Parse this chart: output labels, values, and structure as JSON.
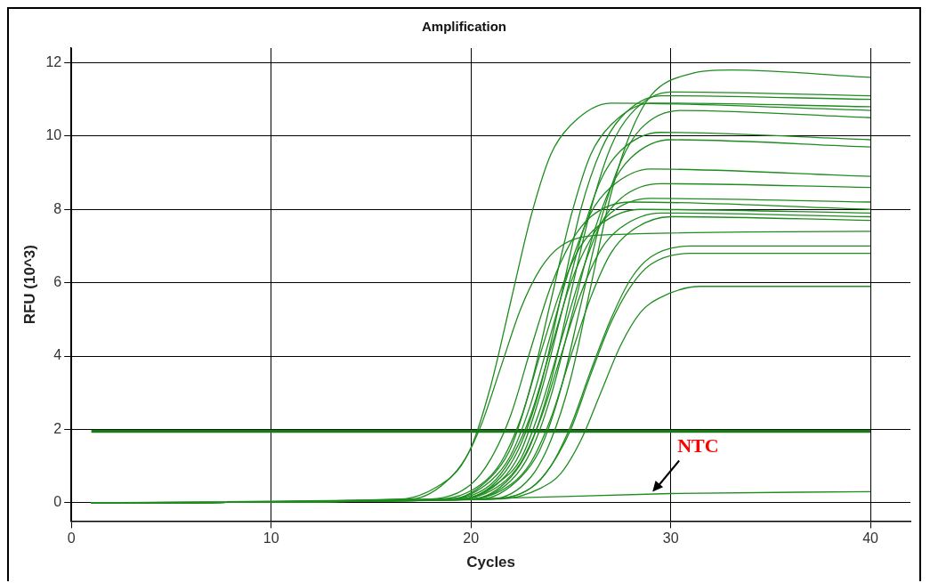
{
  "chart_data": {
    "type": "line",
    "title": "Amplification",
    "xlabel": "Cycles",
    "ylabel": "RFU (10^3)",
    "xlim": [
      0,
      42
    ],
    "ylim": [
      -0.5,
      12.4
    ],
    "xticks": [
      0,
      10,
      20,
      30,
      40
    ],
    "yticks": [
      0,
      2,
      4,
      6,
      8,
      10,
      12
    ],
    "grid": true,
    "legend": false,
    "marker": "none",
    "line_style": "solid",
    "ref_lines": [
      {
        "axis": "y",
        "value": 1.95,
        "color": "#1a7a1a"
      }
    ],
    "annotations": [
      {
        "text": "NTC",
        "x": 29,
        "y": 0.25
      }
    ],
    "series": [
      {
        "color": "#1f8c1f",
        "x": [
          1,
          17,
          19,
          20,
          21,
          22,
          23,
          24,
          25,
          27,
          40
        ],
        "values": [
          0,
          0.1,
          0.7,
          1.5,
          3.2,
          5.5,
          7.8,
          9.5,
          10.3,
          10.9,
          10.7
        ]
      },
      {
        "color": "#1f8c1f",
        "x": [
          1,
          16.5,
          18.5,
          19.5,
          20.5,
          21.5,
          22.5,
          23.5,
          24.5,
          26.5,
          40
        ],
        "values": [
          0,
          0.1,
          0.5,
          1.0,
          2.1,
          3.7,
          5.3,
          6.4,
          7.0,
          7.3,
          7.4
        ]
      },
      {
        "color": "#1f8c1f",
        "x": [
          1,
          21,
          23,
          24,
          25,
          26,
          27,
          28,
          29,
          31,
          33,
          40
        ],
        "values": [
          0,
          0.1,
          0.7,
          1.7,
          3.4,
          5.9,
          8.4,
          10.1,
          11.1,
          11.7,
          11.8,
          11.6
        ]
      },
      {
        "color": "#1f8c1f",
        "x": [
          1,
          20,
          22,
          23,
          24,
          25,
          26,
          27,
          28,
          30,
          40
        ],
        "values": [
          0,
          0.1,
          0.7,
          1.6,
          3.3,
          5.7,
          8.0,
          9.7,
          10.6,
          11.2,
          11.1
        ]
      },
      {
        "color": "#1f8c1f",
        "x": [
          1,
          19.5,
          21.5,
          22.5,
          23.5,
          24.5,
          25.5,
          26.5,
          27.5,
          29.5,
          40
        ],
        "values": [
          0,
          0.1,
          0.7,
          1.6,
          3.2,
          5.6,
          8.0,
          9.6,
          10.5,
          11.1,
          11.0
        ]
      },
      {
        "color": "#1f8c1f",
        "x": [
          1,
          19,
          21,
          22,
          23,
          24,
          25,
          26,
          27,
          29,
          40
        ],
        "values": [
          0,
          0.1,
          0.7,
          1.5,
          3.2,
          5.5,
          7.8,
          9.5,
          10.3,
          10.9,
          10.8
        ]
      },
      {
        "color": "#1f8c1f",
        "x": [
          1,
          20.5,
          22.5,
          23.5,
          24.5,
          25.5,
          26.5,
          27.5,
          28.5,
          30.5,
          40
        ],
        "values": [
          0,
          0.1,
          0.7,
          1.5,
          3.1,
          5.4,
          7.7,
          9.3,
          10.2,
          10.7,
          10.5
        ]
      },
      {
        "color": "#1f8c1f",
        "x": [
          1,
          19.5,
          21.5,
          22.5,
          23.5,
          24.5,
          25.5,
          26.5,
          27.5,
          29.5,
          40
        ],
        "values": [
          0,
          0.1,
          0.6,
          1.4,
          3.0,
          5.1,
          7.2,
          8.8,
          9.6,
          10.1,
          9.9
        ]
      },
      {
        "color": "#1f8c1f",
        "x": [
          1,
          20,
          22,
          23,
          24,
          25,
          26,
          27,
          28,
          30,
          40
        ],
        "values": [
          0,
          0.1,
          0.6,
          1.4,
          2.9,
          5.0,
          7.1,
          8.6,
          9.4,
          9.9,
          9.7
        ]
      },
      {
        "color": "#1f8c1f",
        "x": [
          1,
          19,
          21,
          22,
          23,
          24,
          25,
          26,
          27,
          29,
          40
        ],
        "values": [
          0,
          0.1,
          0.6,
          1.3,
          2.7,
          4.6,
          6.5,
          7.9,
          8.6,
          9.1,
          8.9
        ]
      },
      {
        "color": "#1f8c1f",
        "x": [
          1,
          19.5,
          21.5,
          22.5,
          23.5,
          24.5,
          25.5,
          26.5,
          27.5,
          29.5,
          40
        ],
        "values": [
          0,
          0.1,
          0.6,
          1.2,
          2.6,
          4.4,
          6.2,
          7.6,
          8.3,
          8.7,
          8.6
        ]
      },
      {
        "color": "#1f8c1f",
        "x": [
          1,
          19,
          21,
          22,
          23,
          24,
          25,
          26,
          27,
          29,
          40
        ],
        "values": [
          0,
          0.1,
          0.5,
          1.2,
          2.4,
          4.2,
          6.0,
          7.2,
          7.9,
          8.3,
          8.2
        ]
      },
      {
        "color": "#1f8c1f",
        "x": [
          1,
          18.5,
          20.5,
          21.5,
          22.5,
          23.5,
          24.5,
          25.5,
          26.5,
          28.5,
          40
        ],
        "values": [
          0,
          0.1,
          0.5,
          1.1,
          2.3,
          4.1,
          5.8,
          7.0,
          7.6,
          8.0,
          7.9
        ]
      },
      {
        "color": "#1f8c1f",
        "x": [
          1,
          19.5,
          21.5,
          22.5,
          23.5,
          24.5,
          25.5,
          26.5,
          27.5,
          29.5,
          40
        ],
        "values": [
          0,
          0.1,
          0.5,
          1.1,
          2.3,
          4.0,
          5.7,
          6.9,
          7.5,
          7.9,
          7.8
        ]
      },
      {
        "color": "#1f8c1f",
        "x": [
          1,
          20,
          22,
          23,
          24,
          25,
          26,
          27,
          28,
          30,
          40
        ],
        "values": [
          0,
          0.1,
          0.5,
          1.1,
          2.3,
          4.0,
          5.6,
          6.8,
          7.4,
          7.8,
          7.7
        ]
      },
      {
        "color": "#1f8c1f",
        "x": [
          1,
          21,
          23,
          24,
          25,
          26,
          27,
          28,
          29,
          31,
          40
        ],
        "values": [
          0,
          0.1,
          0.4,
          1.0,
          2.1,
          3.6,
          5.0,
          6.1,
          6.7,
          7.0,
          7.0
        ]
      },
      {
        "color": "#1f8c1f",
        "x": [
          1,
          21,
          23,
          24,
          25,
          26,
          27,
          28,
          29,
          31,
          40
        ],
        "values": [
          0,
          0.1,
          0.4,
          1.0,
          2.0,
          3.5,
          4.9,
          5.9,
          6.5,
          6.8,
          6.8
        ]
      },
      {
        "color": "#1f8c1f",
        "x": [
          1,
          21.5,
          23.5,
          24.5,
          25.5,
          26.5,
          27.5,
          28.5,
          29.5,
          31.5,
          40
        ],
        "values": [
          0,
          0.1,
          0.4,
          0.8,
          1.7,
          3.0,
          4.3,
          5.2,
          5.6,
          5.9,
          5.9
        ]
      },
      {
        "color": "#1f8c1f",
        "x": [
          1,
          18,
          20,
          21,
          22,
          23,
          24,
          25,
          26,
          28,
          40
        ],
        "values": [
          0,
          0.1,
          0.5,
          1.2,
          2.4,
          4.2,
          5.9,
          7.1,
          7.8,
          8.2,
          8.0
        ]
      },
      {
        "color": "#1f8c1f",
        "x": [
          1,
          20,
          30,
          40
        ],
        "values": [
          0,
          0.1,
          0.25,
          0.3
        ]
      }
    ]
  }
}
